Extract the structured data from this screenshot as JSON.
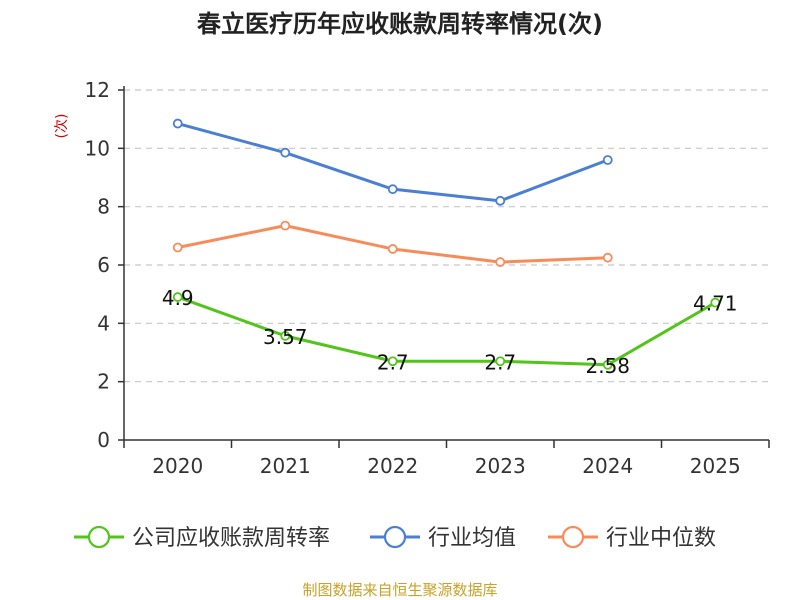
{
  "chart_data": {
    "type": "line",
    "title": "春立医疗历年应收账款周转率情况(次)",
    "ylabel": "(次)",
    "xlabel": "",
    "categories": [
      "2020",
      "2021",
      "2022",
      "2023",
      "2024",
      "2025"
    ],
    "ylim": [
      0,
      12
    ],
    "yticks": [
      0,
      2,
      4,
      6,
      8,
      10,
      12
    ],
    "grid": "horizontal-dashed",
    "legend_position": "bottom",
    "series": [
      {
        "name": "公司应收账款周转率",
        "color": "#52c41a",
        "values": [
          4.9,
          3.57,
          2.7,
          2.7,
          2.58,
          4.71
        ],
        "labels": [
          "4.9",
          "3.57",
          "2.7",
          "2.7",
          "2.58",
          "4.71"
        ],
        "show_labels": true
      },
      {
        "name": "行业均值",
        "color": "#4a7fd4",
        "values": [
          10.85,
          9.85,
          8.6,
          8.2,
          9.6,
          null
        ],
        "show_labels": false
      },
      {
        "name": "行业中位数",
        "color": "#f78c5a",
        "values": [
          6.6,
          7.35,
          6.55,
          6.1,
          6.25,
          null
        ],
        "show_labels": false
      }
    ],
    "source": "制图数据来自恒生聚源数据库"
  }
}
